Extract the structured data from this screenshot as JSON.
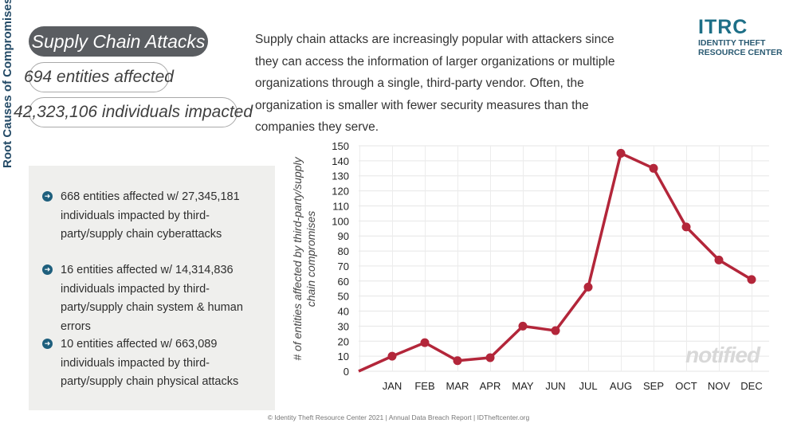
{
  "side_label": "Root Causes of Compromises",
  "header": {
    "title": "Supply Chain Attacks",
    "entities": "694 entities affected",
    "individuals": "42,323,106 individuals impacted"
  },
  "intro": "Supply chain attacks are increasingly popular with attackers since they can access the information of larger organizations or multiple organizations through a single, third-party vendor. Often, the organization is smaller with fewer security measures than the companies they serve.",
  "logo": {
    "mark": "ITRC",
    "line1": "IDENTITY THEFT",
    "line2": "RESOURCE CENTER"
  },
  "bullets": [
    "668 entities affected w/ 27,345,181 individuals impacted by third-party/supply chain cyberattacks",
    "16 entities affected w/ 14,314,836 individuals impacted by third-party/supply chain system & human errors",
    "10 entities affected w/ 663,089 individuals impacted by third-party/supply chain physical attacks"
  ],
  "watermark": "notified",
  "footer": "© Identity Theft Resource Center 2021  |  Annual Data Breach Report  |  IDTheftcenter.org",
  "colors": {
    "line": "#b3263a",
    "accent": "#1e5f7d",
    "pill_dark": "#5a5d61",
    "panel": "#efefed"
  },
  "chart_data": {
    "type": "line",
    "categories": [
      "JAN",
      "FEB",
      "MAR",
      "APR",
      "MAY",
      "JUN",
      "JUL",
      "AUG",
      "SEP",
      "OCT",
      "NOV",
      "DEC"
    ],
    "values": [
      10,
      19,
      7,
      9,
      30,
      27,
      56,
      145,
      135,
      96,
      74,
      61
    ],
    "start_value": 0,
    "ylabel": "# of entities affected by third-party/supply chain compromises",
    "ylim": [
      0,
      150
    ],
    "yticks": [
      0,
      10,
      20,
      30,
      40,
      50,
      60,
      70,
      80,
      90,
      100,
      110,
      120,
      130,
      140,
      150
    ],
    "grid": true,
    "legend": "none"
  }
}
